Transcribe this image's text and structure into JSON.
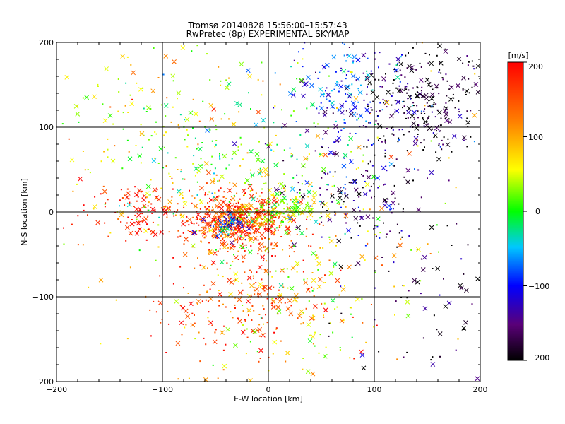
{
  "chart_data": {
    "type": "scatter",
    "title": "Tromsø 20140828 15:56:00–15:57:43",
    "subtitle": "RwPretec (8p) EXPERIMENTAL SKYMAP",
    "xlabel": "E-W location [km]",
    "ylabel": "N-S location [km]",
    "xlim": [
      -200,
      200
    ],
    "ylim": [
      -200,
      200
    ],
    "x_ticks": [
      "−200",
      "−100",
      "0",
      "100",
      "200"
    ],
    "y_ticks": [
      "−200",
      "−100",
      "0",
      "100",
      "200"
    ],
    "grid": true,
    "colorbar": {
      "label": "[m/s]",
      "range": [
        -200,
        200
      ],
      "ticks": [
        "200",
        "100",
        "0",
        "−100",
        "−200"
      ],
      "placement": "right",
      "colormap": [
        "#000000",
        "#5a0078",
        "#0000ff",
        "#00c8ff",
        "#00ff00",
        "#ffff00",
        "#ff8000",
        "#ff0000"
      ]
    },
    "marker_types": [
      "dot",
      "cross"
    ],
    "point_clusters": [
      {
        "x": -30,
        "y": -10,
        "sx": 25,
        "sy": 15,
        "v": 160,
        "n": 550
      },
      {
        "x": -120,
        "y": 0,
        "sx": 25,
        "sy": 18,
        "v": 185,
        "n": 110
      },
      {
        "x": 15,
        "y": 5,
        "sx": 15,
        "sy": 12,
        "v": 40,
        "n": 150
      },
      {
        "x": -40,
        "y": -15,
        "sx": 10,
        "sy": 8,
        "v": -100,
        "n": 60
      },
      {
        "x": 150,
        "y": 130,
        "sx": 30,
        "sy": 35,
        "v": -190,
        "n": 310
      },
      {
        "x": 70,
        "y": 140,
        "sx": 30,
        "sy": 35,
        "v": -90,
        "n": 190
      },
      {
        "x": 80,
        "y": 30,
        "sx": 35,
        "sy": 40,
        "v": -150,
        "n": 180
      },
      {
        "x": -40,
        "y": 60,
        "sx": 50,
        "sy": 50,
        "v": 20,
        "n": 240
      },
      {
        "x": -20,
        "y": -100,
        "sx": 45,
        "sy": 45,
        "v": 150,
        "n": 270
      },
      {
        "x": 30,
        "y": -110,
        "sx": 40,
        "sy": 45,
        "v": 60,
        "n": 110
      },
      {
        "x": -140,
        "y": 120,
        "sx": 50,
        "sy": 45,
        "v": 70,
        "n": 80
      },
      {
        "x": 150,
        "y": -100,
        "sx": 40,
        "sy": 55,
        "v": -180,
        "n": 80
      },
      {
        "x": 0,
        "y": 0,
        "sx": 120,
        "sy": 120,
        "v": 80,
        "n": 220
      }
    ]
  }
}
